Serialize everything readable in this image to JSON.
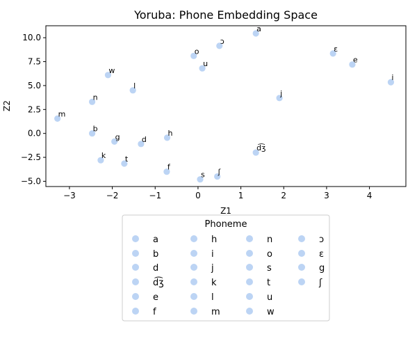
{
  "chart_data": {
    "type": "scatter",
    "title": "Yoruba:  Phone Embedding Space",
    "xlabel": "Z1",
    "ylabel": "Z2",
    "xlim": [
      -3.55,
      4.85
    ],
    "ylim": [
      -5.55,
      11.25
    ],
    "xticks": [
      -3,
      -2,
      -1,
      0,
      1,
      2,
      3,
      4
    ],
    "yticks": [
      -5.0,
      -2.5,
      0.0,
      2.5,
      5.0,
      7.5,
      10.0
    ],
    "grid": false,
    "point_color": "#bcd4f4",
    "legend": {
      "title": "Phoneme",
      "placement": "below",
      "columns": 4,
      "entries": [
        "a",
        "b",
        "d",
        "d͡ʒ",
        "e",
        "f",
        "h",
        "i",
        "j",
        "k",
        "l",
        "m",
        "n",
        "o",
        "s",
        "t",
        "u",
        "w",
        "ɔ",
        "ɛ",
        "g",
        "ʃ"
      ]
    },
    "points": [
      {
        "label": "a",
        "x": 1.35,
        "y": 10.45
      },
      {
        "label": "ɔ",
        "x": 0.5,
        "y": 9.15
      },
      {
        "label": "o",
        "x": -0.1,
        "y": 8.1
      },
      {
        "label": "u",
        "x": 0.1,
        "y": 6.8
      },
      {
        "label": "ɛ",
        "x": 3.15,
        "y": 8.35
      },
      {
        "label": "e",
        "x": 3.6,
        "y": 7.2
      },
      {
        "label": "i",
        "x": 4.5,
        "y": 5.35
      },
      {
        "label": "w",
        "x": -2.1,
        "y": 6.1
      },
      {
        "label": "l",
        "x": -1.52,
        "y": 4.5
      },
      {
        "label": "n",
        "x": -2.47,
        "y": 3.3
      },
      {
        "label": "j",
        "x": 1.9,
        "y": 3.7
      },
      {
        "label": "m",
        "x": -3.28,
        "y": 1.55
      },
      {
        "label": "b",
        "x": -2.47,
        "y": 0.0
      },
      {
        "label": "h",
        "x": -0.72,
        "y": -0.45
      },
      {
        "label": "g",
        "x": -1.95,
        "y": -0.85
      },
      {
        "label": "d",
        "x": -1.33,
        "y": -1.1
      },
      {
        "label": "d͡ʒ",
        "x": 1.35,
        "y": -2.0
      },
      {
        "label": "k",
        "x": -2.27,
        "y": -2.8
      },
      {
        "label": "t",
        "x": -1.72,
        "y": -3.15
      },
      {
        "label": "f",
        "x": -0.73,
        "y": -4.0
      },
      {
        "label": "ʃ",
        "x": 0.45,
        "y": -4.5
      },
      {
        "label": "s",
        "x": 0.05,
        "y": -4.8
      }
    ]
  }
}
